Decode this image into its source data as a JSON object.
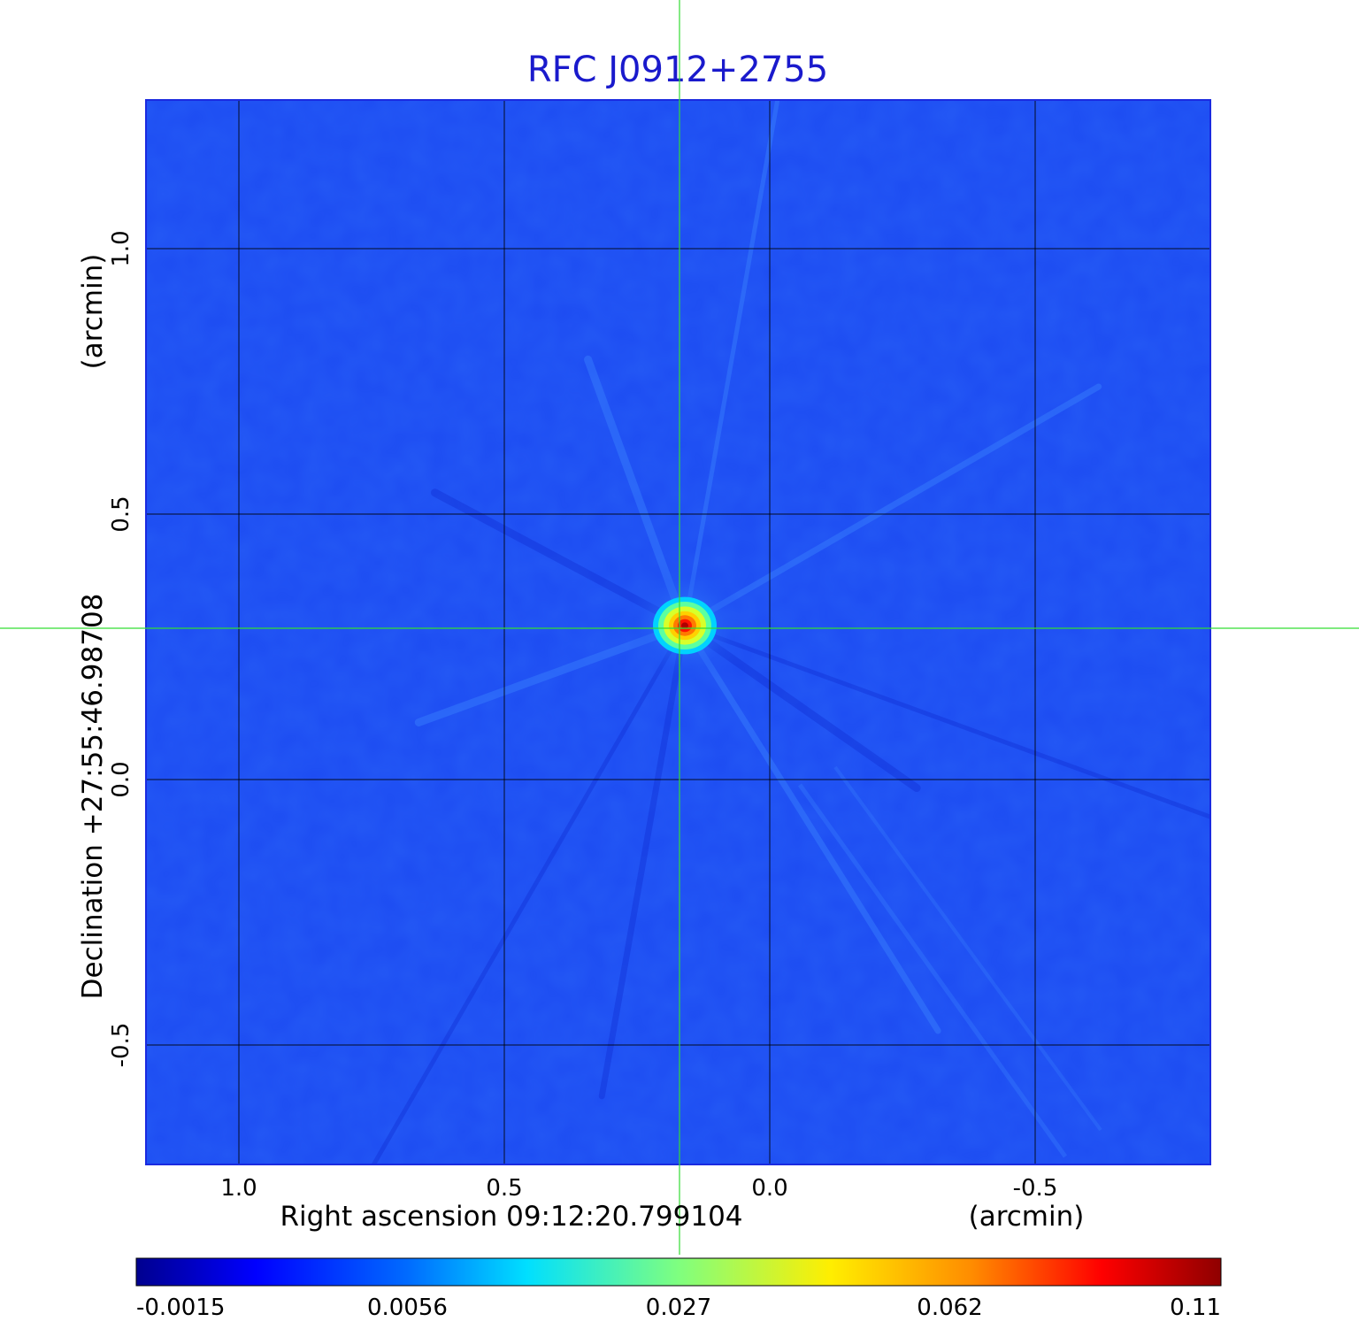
{
  "chart_data": {
    "type": "heatmap",
    "title": "RFC J0912+2755",
    "xlabel": "Right ascension  09:12:20.799104",
    "xunit": "(arcmin)",
    "ylabel": "Declination  +27:55:46.98708",
    "yunit": "(arcmin)",
    "x_ticks": [
      {
        "value": 1.0,
        "label": "1.0"
      },
      {
        "value": 0.5,
        "label": "0.5"
      },
      {
        "value": 0.0,
        "label": "0.0"
      },
      {
        "value": -0.5,
        "label": "-0.5"
      }
    ],
    "y_ticks": [
      {
        "value": 1.0,
        "label": "1.0"
      },
      {
        "value": 0.5,
        "label": "0.5"
      },
      {
        "value": 0.0,
        "label": "0.0"
      },
      {
        "value": -0.5,
        "label": "-0.5"
      }
    ],
    "xlim": [
      1.175,
      -0.83
    ],
    "ylim": [
      -0.725,
      1.28
    ],
    "grid": true,
    "crosshair": {
      "x": 0.17,
      "y": 0.285
    },
    "source": {
      "x": 0.16,
      "y": 0.29,
      "peak": 0.11
    },
    "colorbar": {
      "colormap": "jet",
      "tick_labels": [
        "-0.0015",
        "0.0056",
        "0.027",
        "0.062",
        "0.11"
      ]
    }
  }
}
